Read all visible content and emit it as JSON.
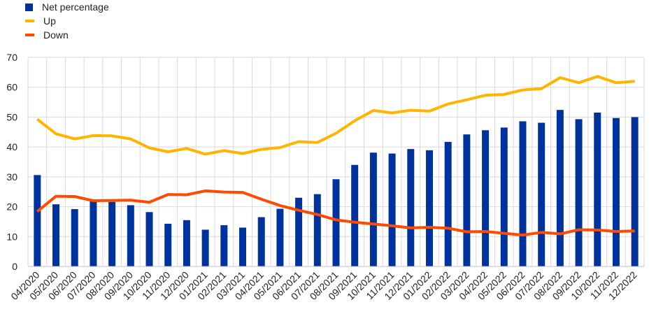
{
  "chart_data": {
    "type": "bar",
    "title": "",
    "xlabel": "",
    "ylabel": "",
    "ylim": [
      0,
      70
    ],
    "yticks": [
      0,
      10,
      20,
      30,
      40,
      50,
      60,
      70
    ],
    "grid": true,
    "legend_position": "top-left",
    "categories": [
      "04/2020",
      "05/2020",
      "06/2020",
      "07/2020",
      "08/2020",
      "09/2020",
      "10/2020",
      "11/2020",
      "12/2020",
      "01/2021",
      "02/2021",
      "03/2021",
      "04/2021",
      "05/2021",
      "06/2021",
      "07/2021",
      "08/2021",
      "09/2021",
      "10/2021",
      "11/2021",
      "12/2021",
      "01/2022",
      "02/2022",
      "03/2022",
      "04/2022",
      "05/2022",
      "06/2022",
      "07/2022",
      "08/2022",
      "09/2022",
      "10/2022",
      "11/2022",
      "12/2022"
    ],
    "series": [
      {
        "name": "Net percentage",
        "type": "bar",
        "color": "#003299",
        "values": [
          30.6,
          20.8,
          19.2,
          21.8,
          21.6,
          20.5,
          18.2,
          14.3,
          15.5,
          12.3,
          13.8,
          13.0,
          16.5,
          19.3,
          23.0,
          24.2,
          29.2,
          34.0,
          38.1,
          37.8,
          39.3,
          38.9,
          41.7,
          44.2,
          45.6,
          46.5,
          48.6,
          48.1,
          52.4,
          49.3,
          51.5,
          49.7,
          50.0
        ]
      },
      {
        "name": "Up",
        "type": "line",
        "color": "#FFB400",
        "values": [
          49.3,
          44.4,
          42.7,
          43.8,
          43.7,
          42.7,
          39.7,
          38.4,
          39.5,
          37.6,
          38.8,
          37.8,
          39.2,
          39.8,
          41.8,
          41.5,
          44.6,
          48.8,
          52.2,
          51.4,
          52.3,
          52.0,
          54.4,
          55.8,
          57.3,
          57.6,
          59.1,
          59.5,
          63.2,
          61.5,
          63.6,
          61.5,
          62.0
        ]
      },
      {
        "name": "Down",
        "type": "line",
        "color": "#FF4B00",
        "values": [
          18.4,
          23.5,
          23.4,
          22.0,
          22.1,
          22.2,
          21.5,
          24.1,
          24.0,
          25.3,
          24.9,
          24.8,
          22.5,
          20.4,
          18.8,
          17.4,
          15.6,
          14.8,
          14.2,
          13.6,
          12.9,
          13.1,
          12.8,
          11.6,
          11.7,
          11.1,
          10.5,
          11.4,
          10.9,
          12.3,
          12.2,
          11.7,
          11.9
        ]
      }
    ]
  }
}
